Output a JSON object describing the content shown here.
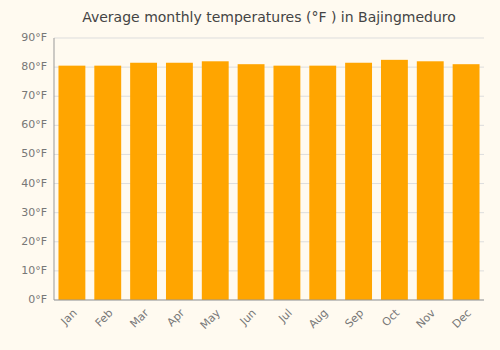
{
  "chart_data": {
    "type": "bar",
    "title": "Average monthly temperatures (°F ) in Bajingmeduro",
    "categories": [
      "Jan",
      "Feb",
      "Mar",
      "Apr",
      "May",
      "Jun",
      "Jul",
      "Aug",
      "Sep",
      "Oct",
      "Nov",
      "Dec"
    ],
    "values": [
      80.5,
      80.5,
      81.5,
      81.5,
      82.0,
      81.0,
      80.5,
      80.5,
      81.5,
      82.5,
      82.0,
      81.0
    ],
    "color": "#FFA500",
    "ylim": [
      0,
      90
    ],
    "yticks": [
      {
        "value": 0,
        "label": "0°F"
      },
      {
        "value": 10,
        "label": "10°F"
      },
      {
        "value": 20,
        "label": "20°F"
      },
      {
        "value": 30,
        "label": "30°F"
      },
      {
        "value": 40,
        "label": "40°F"
      },
      {
        "value": 50,
        "label": "50°F"
      },
      {
        "value": 60,
        "label": "60°F"
      },
      {
        "value": 70,
        "label": "70°F"
      },
      {
        "value": 80,
        "label": "80°F"
      },
      {
        "value": 90,
        "label": "90°F"
      }
    ],
    "grid": true
  }
}
